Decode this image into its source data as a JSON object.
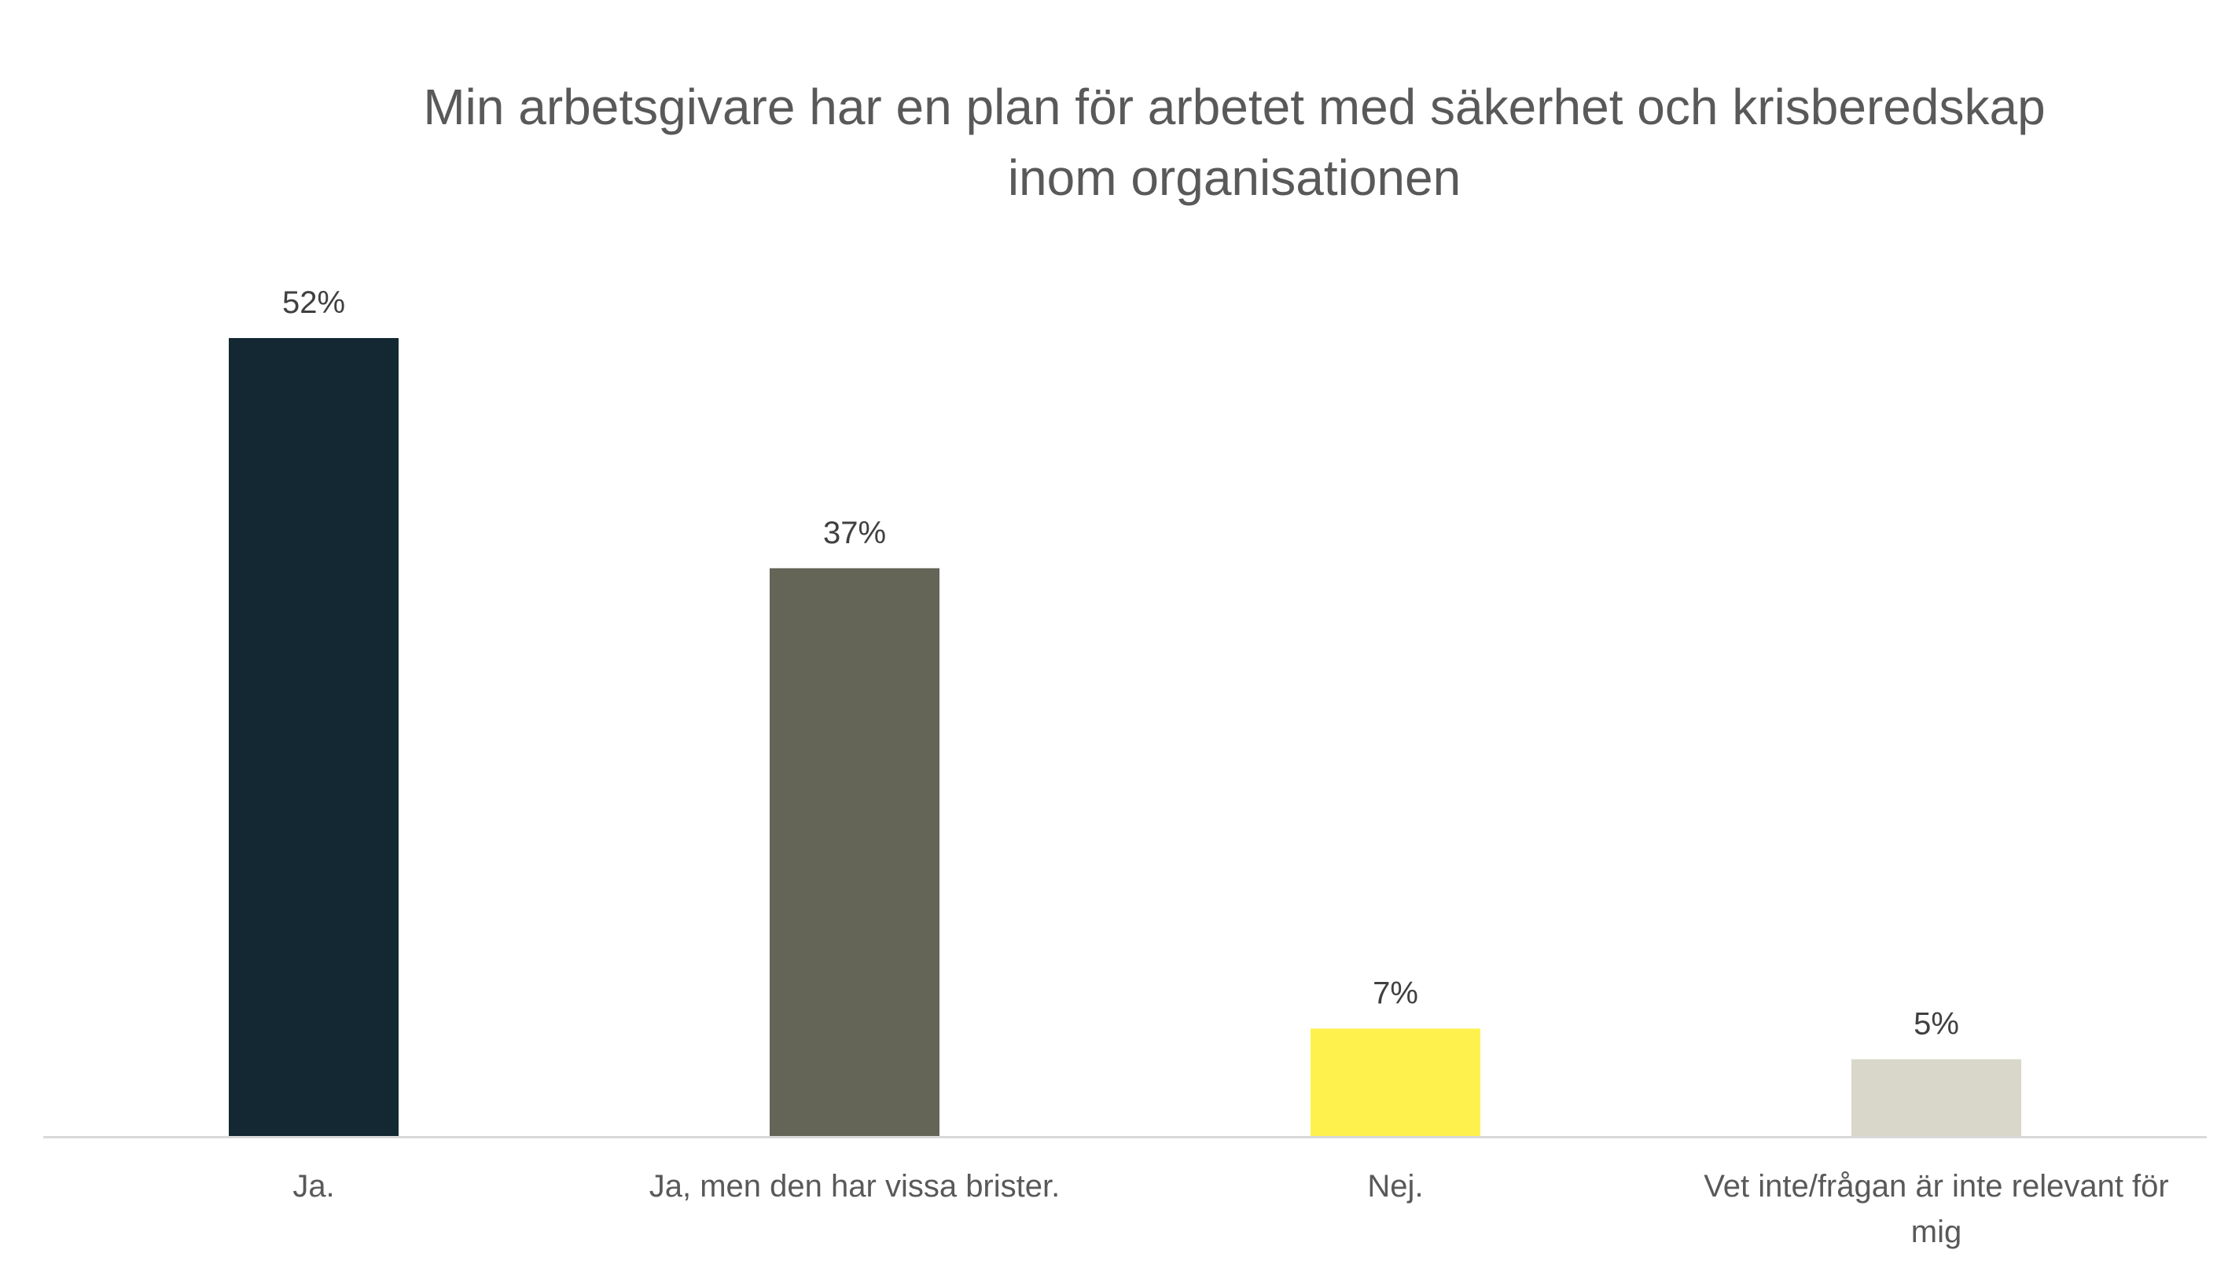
{
  "chart_data": {
    "type": "bar",
    "title_lines": [
      "Min arbetsgivare har en plan för arbetet med säkerhet och krisberedskap",
      "inom organisationen"
    ],
    "categories": [
      [
        "Ja."
      ],
      [
        "Ja, men den har vissa brister."
      ],
      [
        "Nej."
      ],
      [
        "Vet inte/frågan är inte relevant för",
        "mig"
      ]
    ],
    "values": [
      52,
      37,
      7,
      5
    ],
    "value_labels": [
      "52%",
      "37%",
      "7%",
      "5%"
    ],
    "colors": [
      "#132833",
      "#646557",
      "#FEF14E",
      "#D8D7CA"
    ],
    "ylim": [
      0,
      52
    ],
    "xlabel": "",
    "ylabel": "",
    "grid": false,
    "legend": "none"
  }
}
